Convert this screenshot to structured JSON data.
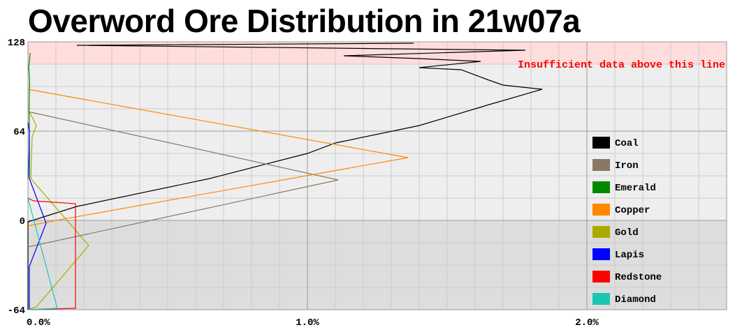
{
  "chart_data": {
    "type": "line",
    "title": "Overword Ore Distribution in 21w07a",
    "xlabel": "",
    "ylabel": "",
    "xlim": [
      0,
      2.5
    ],
    "ylim": [
      -64,
      128
    ],
    "x_ticks": [
      {
        "value": 0,
        "label": "0.0%"
      },
      {
        "value": 1,
        "label": "1.0%"
      },
      {
        "value": 2,
        "label": "2.0%"
      }
    ],
    "y_ticks": [
      {
        "value": 128,
        "label": "128"
      },
      {
        "value": 64,
        "label": "64"
      },
      {
        "value": 0,
        "label": "0"
      },
      {
        "value": -64,
        "label": "-64"
      }
    ],
    "grid": true,
    "legend_position": "right",
    "annotation": {
      "text": "Insufficient data above this line",
      "y": 112
    },
    "series": [
      {
        "name": "Coal",
        "color": "#000000",
        "points": [
          [
            0,
            -64
          ],
          [
            0,
            -1
          ],
          [
            0.175,
            10
          ],
          [
            0.65,
            30
          ],
          [
            1.0,
            48
          ],
          [
            1.1,
            55.5
          ],
          [
            1.4,
            68
          ],
          [
            1.65,
            83
          ],
          [
            1.84,
            94
          ],
          [
            1.7,
            97
          ],
          [
            1.65,
            100.5
          ],
          [
            1.55,
            108
          ],
          [
            1.4,
            109.5
          ],
          [
            1.62,
            114
          ],
          [
            1.4,
            116
          ],
          [
            1.13,
            118
          ],
          [
            1.78,
            122
          ],
          [
            0.175,
            125.5
          ],
          [
            1.38,
            127
          ]
        ]
      },
      {
        "name": "Iron",
        "color": "#8b7766",
        "points": [
          [
            0,
            -19
          ],
          [
            1.11,
            29
          ],
          [
            0,
            78
          ]
        ]
      },
      {
        "name": "Emerald",
        "color": "#008800",
        "points": [
          [
            0,
            30
          ],
          [
            0.004,
            50
          ],
          [
            0.005,
            64
          ],
          [
            0.004,
            80
          ],
          [
            0.006,
            100
          ],
          [
            0.003,
            110
          ],
          [
            0.008,
            120
          ]
        ]
      },
      {
        "name": "Copper",
        "color": "#ff8800",
        "points": [
          [
            0,
            -4
          ],
          [
            0.1,
            0
          ],
          [
            1.36,
            45
          ],
          [
            0,
            94
          ]
        ]
      },
      {
        "name": "Gold",
        "color": "#aaaa00",
        "points": [
          [
            0,
            -64
          ],
          [
            0.03,
            -62
          ],
          [
            0.2175,
            -18
          ],
          [
            0.01,
            30
          ],
          [
            0.015,
            60
          ],
          [
            0.03,
            68
          ],
          [
            0.01,
            76
          ],
          [
            0,
            80
          ]
        ]
      },
      {
        "name": "Lapis",
        "color": "#0000ff",
        "points": [
          [
            0.005,
            -64
          ],
          [
            0.005,
            -33
          ],
          [
            0.065,
            -2
          ],
          [
            0.02,
            22
          ],
          [
            0.005,
            30
          ],
          [
            0.005,
            64
          ],
          [
            0,
            70
          ]
        ]
      },
      {
        "name": "Redstone",
        "color": "#ff0000",
        "points": [
          [
            0,
            -64
          ],
          [
            0.17,
            -63
          ],
          [
            0.17,
            12
          ],
          [
            0.02,
            14
          ],
          [
            0,
            16
          ]
        ]
      },
      {
        "name": "Diamond",
        "color": "#1cc6b4",
        "points": [
          [
            0,
            16
          ],
          [
            0.105,
            -63
          ],
          [
            0,
            -64
          ]
        ]
      }
    ]
  }
}
